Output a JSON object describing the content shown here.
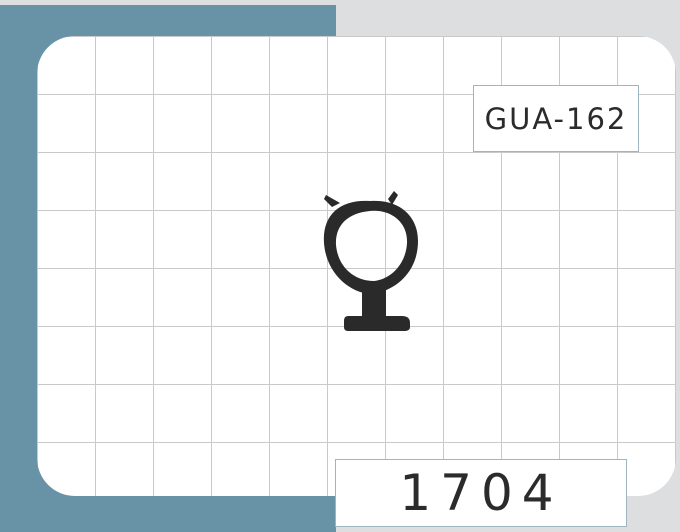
{
  "product": {
    "code": "GUA-162",
    "number": "1704"
  },
  "profile_icon": "bulb-gasket-profile-icon",
  "colors": {
    "frame": "#6892a6",
    "background": "#dcdee0",
    "grid_line": "#c9c9c9",
    "profile": "#2a2a2a",
    "label_border": "#9fb6c2"
  }
}
